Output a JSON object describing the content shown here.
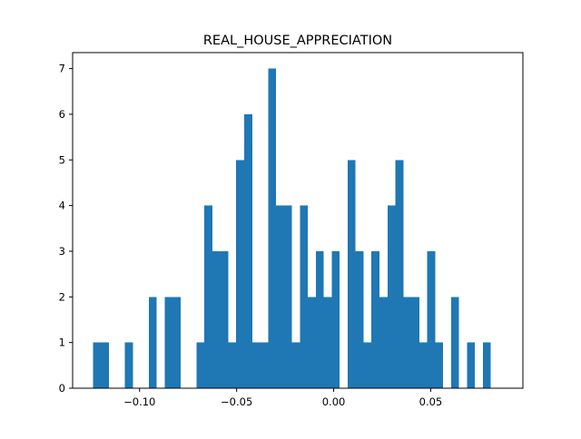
{
  "chart_data": {
    "type": "bar",
    "title": "REAL_HOUSE_APPRECIATION",
    "xlabel": "",
    "ylabel": "",
    "xlim": [
      -0.1345,
      0.0975
    ],
    "ylim": [
      0,
      7.35
    ],
    "bin_width": 0.0041,
    "bins": [
      {
        "x0": -0.124,
        "count": 1
      },
      {
        "x0": -0.1199,
        "count": 1
      },
      {
        "x0": -0.1158,
        "count": 0
      },
      {
        "x0": -0.1117,
        "count": 0
      },
      {
        "x0": -0.1076,
        "count": 1
      },
      {
        "x0": -0.1035,
        "count": 0
      },
      {
        "x0": -0.0994,
        "count": 0
      },
      {
        "x0": -0.0953,
        "count": 2
      },
      {
        "x0": -0.0912,
        "count": 0
      },
      {
        "x0": -0.0871,
        "count": 2
      },
      {
        "x0": -0.083,
        "count": 2
      },
      {
        "x0": -0.0789,
        "count": 0
      },
      {
        "x0": -0.0748,
        "count": 0
      },
      {
        "x0": -0.0707,
        "count": 1
      },
      {
        "x0": -0.0666,
        "count": 4
      },
      {
        "x0": -0.0625,
        "count": 3
      },
      {
        "x0": -0.0584,
        "count": 3
      },
      {
        "x0": -0.0543,
        "count": 1
      },
      {
        "x0": -0.0502,
        "count": 5
      },
      {
        "x0": -0.0461,
        "count": 6
      },
      {
        "x0": -0.042,
        "count": 1
      },
      {
        "x0": -0.0379,
        "count": 1
      },
      {
        "x0": -0.0338,
        "count": 7
      },
      {
        "x0": -0.0297,
        "count": 4
      },
      {
        "x0": -0.0256,
        "count": 4
      },
      {
        "x0": -0.0215,
        "count": 1
      },
      {
        "x0": -0.0174,
        "count": 4
      },
      {
        "x0": -0.0133,
        "count": 2
      },
      {
        "x0": -0.0092,
        "count": 3
      },
      {
        "x0": -0.0051,
        "count": 2
      },
      {
        "x0": -0.001,
        "count": 3
      },
      {
        "x0": 0.0031,
        "count": 0
      },
      {
        "x0": 0.0072,
        "count": 5
      },
      {
        "x0": 0.0113,
        "count": 3
      },
      {
        "x0": 0.0154,
        "count": 1
      },
      {
        "x0": 0.0195,
        "count": 3
      },
      {
        "x0": 0.0236,
        "count": 2
      },
      {
        "x0": 0.0277,
        "count": 4
      },
      {
        "x0": 0.0318,
        "count": 5
      },
      {
        "x0": 0.0359,
        "count": 2
      },
      {
        "x0": 0.04,
        "count": 2
      },
      {
        "x0": 0.0441,
        "count": 1
      },
      {
        "x0": 0.0482,
        "count": 3
      },
      {
        "x0": 0.0523,
        "count": 1
      },
      {
        "x0": 0.0564,
        "count": 0
      },
      {
        "x0": 0.0605,
        "count": 2
      },
      {
        "x0": 0.0646,
        "count": 0
      },
      {
        "x0": 0.0687,
        "count": 1
      },
      {
        "x0": 0.0728,
        "count": 0
      },
      {
        "x0": 0.0769,
        "count": 1
      }
    ],
    "x_ticks": [
      {
        "value": -0.1,
        "label": "−0.10"
      },
      {
        "value": -0.05,
        "label": "−0.05"
      },
      {
        "value": 0.0,
        "label": "0.00"
      },
      {
        "value": 0.05,
        "label": "0.05"
      }
    ],
    "y_ticks": [
      {
        "value": 0,
        "label": "0"
      },
      {
        "value": 1,
        "label": "1"
      },
      {
        "value": 2,
        "label": "2"
      },
      {
        "value": 3,
        "label": "3"
      },
      {
        "value": 4,
        "label": "4"
      },
      {
        "value": 5,
        "label": "5"
      },
      {
        "value": 6,
        "label": "6"
      },
      {
        "value": 7,
        "label": "7"
      }
    ],
    "grid": false,
    "legend": "none",
    "colors": {
      "bar": "#1f77b4",
      "axis": "#000000",
      "background": "#ffffff"
    }
  }
}
